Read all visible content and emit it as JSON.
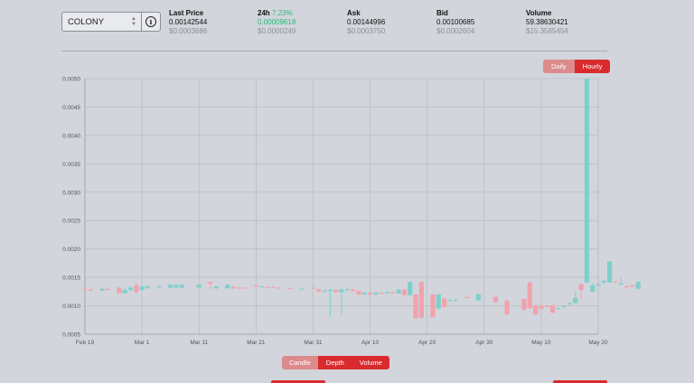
{
  "selector": {
    "value": "COLONY"
  },
  "stats": {
    "last_price": {
      "label": "Last Price",
      "value": "0.00142544",
      "sub": "$0.0003686"
    },
    "change_24h": {
      "label": "24h",
      "pct": "7.23%",
      "value": "0.00009618",
      "sub": "$0.0000249"
    },
    "ask": {
      "label": "Ask",
      "value": "0.00144996",
      "sub": "$0.0003750"
    },
    "bid": {
      "label": "Bid",
      "value": "0.00100685",
      "sub": "$0.0002604"
    },
    "volume": {
      "label": "Volume",
      "value": "59.38630421",
      "sub": "$15.3585454"
    }
  },
  "interval_toggle": {
    "daily": "Daily",
    "hourly": "Hourly",
    "active": "Hourly"
  },
  "view_tabs": {
    "candle": "Candle",
    "depth": "Depth",
    "volume": "Volume",
    "active": "Candle"
  },
  "colors": {
    "up": "#7fcfcb",
    "down": "#f0a3ad",
    "accent": "#d92b2e",
    "accent_light": "#dc8a8c",
    "positive": "#2db77a"
  },
  "chart_data": {
    "type": "candlestick",
    "title": "",
    "ylim": [
      0.0005,
      0.005
    ],
    "y_ticks": [
      "0.0050",
      "0.0045",
      "0.0040",
      "0.0035",
      "0.0030",
      "0.0025",
      "0.0020",
      "0.0015",
      "0.0010",
      "0.0005"
    ],
    "x_ticks": [
      "Feb 19",
      "Mar 1",
      "Mar 11",
      "Mar 21",
      "Mar 31",
      "Apr 10",
      "Apr 20",
      "Apr 30",
      "May 10",
      "May 20"
    ],
    "x_range": [
      "2018-02-19",
      "2018-05-20"
    ],
    "grid": true,
    "candles": [
      {
        "date": "2018-02-19",
        "open": 0.0013,
        "high": 0.00131,
        "low": 0.00128,
        "close": 0.00129
      },
      {
        "date": "2018-02-20",
        "open": 0.00129,
        "high": 0.0013,
        "low": 0.00126,
        "close": 0.00127
      },
      {
        "date": "2018-02-22",
        "open": 0.00127,
        "high": 0.00131,
        "low": 0.00126,
        "close": 0.0013
      },
      {
        "date": "2018-02-23",
        "open": 0.0013,
        "high": 0.00131,
        "low": 0.00127,
        "close": 0.00128
      },
      {
        "date": "2018-02-25",
        "open": 0.00132,
        "high": 0.00133,
        "low": 0.00121,
        "close": 0.00122
      },
      {
        "date": "2018-02-26",
        "open": 0.00122,
        "high": 0.00131,
        "low": 0.00122,
        "close": 0.00128
      },
      {
        "date": "2018-02-27",
        "open": 0.00128,
        "high": 0.00134,
        "low": 0.00126,
        "close": 0.00132
      },
      {
        "date": "2018-02-28",
        "open": 0.00136,
        "high": 0.0014,
        "low": 0.00121,
        "close": 0.00124
      },
      {
        "date": "2018-03-01",
        "open": 0.00128,
        "high": 0.00136,
        "low": 0.00126,
        "close": 0.00134
      },
      {
        "date": "2018-03-02",
        "open": 0.00131,
        "high": 0.00136,
        "low": 0.0013,
        "close": 0.00134
      },
      {
        "date": "2018-03-04",
        "open": 0.00133,
        "high": 0.00135,
        "low": 0.0013,
        "close": 0.00134
      },
      {
        "date": "2018-03-06",
        "open": 0.00132,
        "high": 0.00138,
        "low": 0.00131,
        "close": 0.00137
      },
      {
        "date": "2018-03-07",
        "open": 0.00132,
        "high": 0.00138,
        "low": 0.00131,
        "close": 0.00137
      },
      {
        "date": "2018-03-08",
        "open": 0.00132,
        "high": 0.00138,
        "low": 0.00131,
        "close": 0.00137
      },
      {
        "date": "2018-03-11",
        "open": 0.00132,
        "high": 0.00138,
        "low": 0.00131,
        "close": 0.00137
      },
      {
        "date": "2018-03-13",
        "open": 0.00142,
        "high": 0.00143,
        "low": 0.0013,
        "close": 0.00139
      },
      {
        "date": "2018-03-14",
        "open": 0.00131,
        "high": 0.00136,
        "low": 0.00129,
        "close": 0.00134
      },
      {
        "date": "2018-03-16",
        "open": 0.00131,
        "high": 0.00138,
        "low": 0.0013,
        "close": 0.00137
      },
      {
        "date": "2018-03-17",
        "open": 0.00133,
        "high": 0.00135,
        "low": 0.00129,
        "close": 0.00131
      },
      {
        "date": "2018-03-18",
        "open": 0.00132,
        "high": 0.00133,
        "low": 0.0013,
        "close": 0.00131
      },
      {
        "date": "2018-03-19",
        "open": 0.00132,
        "high": 0.00133,
        "low": 0.0013,
        "close": 0.00131
      },
      {
        "date": "2018-03-21",
        "open": 0.00136,
        "high": 0.00138,
        "low": 0.00133,
        "close": 0.00134
      },
      {
        "date": "2018-03-22",
        "open": 0.00134,
        "high": 0.00135,
        "low": 0.00133,
        "close": 0.00134
      },
      {
        "date": "2018-03-23",
        "open": 0.00133,
        "high": 0.00135,
        "low": 0.00131,
        "close": 0.00132
      },
      {
        "date": "2018-03-24",
        "open": 0.00133,
        "high": 0.00134,
        "low": 0.00131,
        "close": 0.00132
      },
      {
        "date": "2018-03-25",
        "open": 0.00132,
        "high": 0.00133,
        "low": 0.0013,
        "close": 0.00131
      },
      {
        "date": "2018-03-27",
        "open": 0.00131,
        "high": 0.00132,
        "low": 0.00129,
        "close": 0.0013
      },
      {
        "date": "2018-03-29",
        "open": 0.0013,
        "high": 0.00131,
        "low": 0.00129,
        "close": 0.0013
      },
      {
        "date": "2018-03-31",
        "open": 0.00132,
        "high": 0.00133,
        "low": 0.0013,
        "close": 0.00131
      },
      {
        "date": "2018-04-01",
        "open": 0.00129,
        "high": 0.0013,
        "low": 0.00124,
        "close": 0.00125
      },
      {
        "date": "2018-04-02",
        "open": 0.00125,
        "high": 0.0013,
        "low": 0.00124,
        "close": 0.00126
      },
      {
        "date": "2018-04-03",
        "open": 0.00126,
        "high": 0.0013,
        "low": 0.0008,
        "close": 0.00128
      },
      {
        "date": "2018-04-04",
        "open": 0.00128,
        "high": 0.00129,
        "low": 0.00122,
        "close": 0.00124
      },
      {
        "date": "2018-04-05",
        "open": 0.00124,
        "high": 0.0013,
        "low": 0.00084,
        "close": 0.00129
      },
      {
        "date": "2018-04-06",
        "open": 0.00128,
        "high": 0.00131,
        "low": 0.00126,
        "close": 0.00129
      },
      {
        "date": "2018-04-07",
        "open": 0.00129,
        "high": 0.0013,
        "low": 0.00125,
        "close": 0.00126
      },
      {
        "date": "2018-04-08",
        "open": 0.00126,
        "high": 0.00127,
        "low": 0.00119,
        "close": 0.0012
      },
      {
        "date": "2018-04-09",
        "open": 0.0012,
        "high": 0.00124,
        "low": 0.00119,
        "close": 0.00123
      },
      {
        "date": "2018-04-10",
        "open": 0.00123,
        "high": 0.00125,
        "low": 0.00118,
        "close": 0.0012
      },
      {
        "date": "2018-04-11",
        "open": 0.0012,
        "high": 0.00125,
        "low": 0.00119,
        "close": 0.00123
      },
      {
        "date": "2018-04-12",
        "open": 0.00123,
        "high": 0.00124,
        "low": 0.0012,
        "close": 0.00122
      },
      {
        "date": "2018-04-13",
        "open": 0.00122,
        "high": 0.00125,
        "low": 0.00121,
        "close": 0.00124
      },
      {
        "date": "2018-04-14",
        "open": 0.00124,
        "high": 0.00125,
        "low": 0.00121,
        "close": 0.00122
      },
      {
        "date": "2018-04-15",
        "open": 0.00122,
        "high": 0.0013,
        "low": 0.00121,
        "close": 0.00128
      },
      {
        "date": "2018-04-16",
        "open": 0.00128,
        "high": 0.0013,
        "low": 0.00118,
        "close": 0.00119
      },
      {
        "date": "2018-04-17",
        "open": 0.00119,
        "high": 0.00143,
        "low": 0.00118,
        "close": 0.00142
      },
      {
        "date": "2018-04-18",
        "open": 0.0012,
        "high": 0.00121,
        "low": 0.00077,
        "close": 0.00078
      },
      {
        "date": "2018-04-19",
        "open": 0.00142,
        "high": 0.00143,
        "low": 0.00077,
        "close": 0.00079
      },
      {
        "date": "2018-04-21",
        "open": 0.0012,
        "high": 0.00121,
        "low": 0.00079,
        "close": 0.0008
      },
      {
        "date": "2018-04-22",
        "open": 0.00095,
        "high": 0.00121,
        "low": 0.00094,
        "close": 0.0012
      },
      {
        "date": "2018-04-23",
        "open": 0.00113,
        "high": 0.00115,
        "low": 0.00096,
        "close": 0.00098
      },
      {
        "date": "2018-04-24",
        "open": 0.0011,
        "high": 0.00112,
        "low": 0.00108,
        "close": 0.0011
      },
      {
        "date": "2018-04-25",
        "open": 0.0011,
        "high": 0.00112,
        "low": 0.00107,
        "close": 0.0011
      },
      {
        "date": "2018-04-27",
        "open": 0.00115,
        "high": 0.00118,
        "low": 0.00113,
        "close": 0.00114
      },
      {
        "date": "2018-04-29",
        "open": 0.0011,
        "high": 0.00122,
        "low": 0.00108,
        "close": 0.0012
      },
      {
        "date": "2018-05-02",
        "open": 0.00116,
        "high": 0.00117,
        "low": 0.00105,
        "close": 0.00106
      },
      {
        "date": "2018-05-04",
        "open": 0.00109,
        "high": 0.00111,
        "low": 0.00083,
        "close": 0.00085
      },
      {
        "date": "2018-05-07",
        "open": 0.00112,
        "high": 0.00113,
        "low": 0.00091,
        "close": 0.00093
      },
      {
        "date": "2018-05-08",
        "open": 0.00141,
        "high": 0.00143,
        "low": 0.00094,
        "close": 0.00096
      },
      {
        "date": "2018-05-09",
        "open": 0.00101,
        "high": 0.00102,
        "low": 0.00084,
        "close": 0.00085
      },
      {
        "date": "2018-05-10",
        "open": 0.001,
        "high": 0.00101,
        "low": 0.00094,
        "close": 0.00095
      },
      {
        "date": "2018-05-11",
        "open": 0.001,
        "high": 0.00101,
        "low": 0.00097,
        "close": 0.00098
      },
      {
        "date": "2018-05-12",
        "open": 0.00101,
        "high": 0.00102,
        "low": 0.00087,
        "close": 0.00088
      },
      {
        "date": "2018-05-13",
        "open": 0.00095,
        "high": 0.00097,
        "low": 0.00093,
        "close": 0.00096
      },
      {
        "date": "2018-05-14",
        "open": 0.00098,
        "high": 0.00101,
        "low": 0.00096,
        "close": 0.001
      },
      {
        "date": "2018-05-15",
        "open": 0.00103,
        "high": 0.00106,
        "low": 0.00101,
        "close": 0.00105
      },
      {
        "date": "2018-05-16",
        "open": 0.00105,
        "high": 0.00125,
        "low": 0.00104,
        "close": 0.00114
      },
      {
        "date": "2018-05-17",
        "open": 0.00138,
        "high": 0.00139,
        "low": 0.0011,
        "close": 0.00128
      },
      {
        "date": "2018-05-18",
        "open": 0.00141,
        "high": 0.005,
        "low": 0.0014,
        "close": 0.005
      },
      {
        "date": "2018-05-19",
        "open": 0.00125,
        "high": 0.0014,
        "low": 0.00124,
        "close": 0.00136
      },
      {
        "date": "2018-05-20",
        "open": 0.00136,
        "high": 0.00139,
        "low": 0.00134,
        "close": 0.00138
      },
      {
        "date": "2018-05-21",
        "open": 0.00141,
        "high": 0.00145,
        "low": 0.00139,
        "close": 0.00144
      },
      {
        "date": "2018-05-22",
        "open": 0.00141,
        "high": 0.00179,
        "low": 0.0014,
        "close": 0.00178
      },
      {
        "date": "2018-05-23",
        "open": 0.00143,
        "high": 0.00144,
        "low": 0.0014,
        "close": 0.00142
      },
      {
        "date": "2018-05-24",
        "open": 0.00138,
        "high": 0.00149,
        "low": 0.00137,
        "close": 0.00139
      },
      {
        "date": "2018-05-25",
        "open": 0.00134,
        "high": 0.00136,
        "low": 0.00131,
        "close": 0.00133
      },
      {
        "date": "2018-05-26",
        "open": 0.00136,
        "high": 0.00137,
        "low": 0.00133,
        "close": 0.00134
      },
      {
        "date": "2018-05-27",
        "open": 0.0013,
        "high": 0.00143,
        "low": 0.00129,
        "close": 0.00142
      }
    ]
  }
}
